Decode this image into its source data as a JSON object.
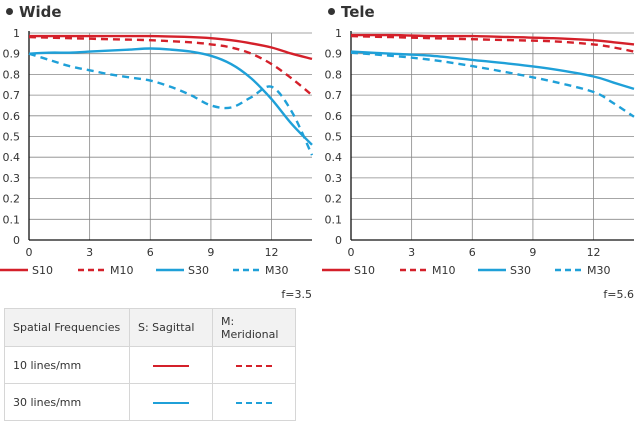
{
  "colors": {
    "red": "#d4202a",
    "blue": "#1fa0d8",
    "grid": "#888888",
    "axis": "#111111"
  },
  "legend_items": [
    {
      "label": "S10",
      "color": "#d4202a",
      "dashed": false
    },
    {
      "label": "M10",
      "color": "#d4202a",
      "dashed": true
    },
    {
      "label": "S30",
      "color": "#1fa0d8",
      "dashed": false
    },
    {
      "label": "M30",
      "color": "#1fa0d8",
      "dashed": true
    }
  ],
  "chart_data": [
    {
      "type": "line",
      "title": "Wide",
      "aperture": "f=3.5",
      "xlim": [
        0,
        14
      ],
      "ylim": [
        0,
        1
      ],
      "x_ticks": [
        "0",
        "3",
        "6",
        "9",
        "12"
      ],
      "y_ticks": [
        "0",
        "0.1",
        "0.2",
        "0.3",
        "0.4",
        "0.5",
        "0.6",
        "0.7",
        "0.8",
        "0.9",
        "1"
      ],
      "grid": true,
      "series": [
        {
          "name": "S10",
          "color": "#d4202a",
          "dashed": false,
          "x": [
            0,
            2,
            4,
            6,
            8,
            9,
            10,
            11,
            12,
            13,
            14
          ],
          "y": [
            0.985,
            0.985,
            0.985,
            0.985,
            0.98,
            0.975,
            0.965,
            0.95,
            0.93,
            0.9,
            0.875
          ]
        },
        {
          "name": "M10",
          "color": "#d4202a",
          "dashed": true,
          "x": [
            0,
            2,
            4,
            6,
            8,
            9,
            10,
            11,
            12,
            13,
            14
          ],
          "y": [
            0.98,
            0.975,
            0.97,
            0.965,
            0.955,
            0.945,
            0.93,
            0.9,
            0.85,
            0.78,
            0.7
          ]
        },
        {
          "name": "S30",
          "color": "#1fa0d8",
          "dashed": false,
          "x": [
            0,
            1,
            2,
            3,
            4,
            5,
            6,
            7,
            8,
            9,
            10,
            11,
            12,
            13,
            14
          ],
          "y": [
            0.9,
            0.905,
            0.905,
            0.91,
            0.915,
            0.92,
            0.925,
            0.92,
            0.91,
            0.89,
            0.85,
            0.78,
            0.68,
            0.56,
            0.46
          ]
        },
        {
          "name": "M30",
          "color": "#1fa0d8",
          "dashed": true,
          "x": [
            0,
            1,
            2,
            3,
            4,
            5,
            6,
            7,
            8,
            9,
            10,
            11,
            12,
            13,
            14
          ],
          "y": [
            0.9,
            0.87,
            0.84,
            0.82,
            0.8,
            0.785,
            0.77,
            0.74,
            0.7,
            0.65,
            0.64,
            0.69,
            0.74,
            0.62,
            0.41
          ]
        }
      ]
    },
    {
      "type": "line",
      "title": "Tele",
      "aperture": "f=5.6",
      "xlim": [
        0,
        14
      ],
      "ylim": [
        0,
        1
      ],
      "x_ticks": [
        "0",
        "3",
        "6",
        "9",
        "12"
      ],
      "y_ticks": [
        "0",
        "0.1",
        "0.2",
        "0.3",
        "0.4",
        "0.5",
        "0.6",
        "0.7",
        "0.8",
        "0.9",
        "1"
      ],
      "grid": true,
      "series": [
        {
          "name": "S10",
          "color": "#d4202a",
          "dashed": false,
          "x": [
            0,
            2,
            4,
            6,
            8,
            10,
            12,
            13,
            14
          ],
          "y": [
            0.99,
            0.99,
            0.985,
            0.985,
            0.98,
            0.975,
            0.965,
            0.955,
            0.945
          ]
        },
        {
          "name": "M10",
          "color": "#d4202a",
          "dashed": true,
          "x": [
            0,
            2,
            4,
            6,
            8,
            10,
            12,
            13,
            14
          ],
          "y": [
            0.985,
            0.98,
            0.975,
            0.97,
            0.965,
            0.96,
            0.945,
            0.93,
            0.91
          ]
        },
        {
          "name": "S30",
          "color": "#1fa0d8",
          "dashed": false,
          "x": [
            0,
            2,
            4,
            6,
            8,
            10,
            12,
            13,
            14
          ],
          "y": [
            0.91,
            0.9,
            0.89,
            0.87,
            0.85,
            0.825,
            0.79,
            0.76,
            0.73
          ]
        },
        {
          "name": "M30",
          "color": "#1fa0d8",
          "dashed": true,
          "x": [
            0,
            2,
            4,
            6,
            8,
            10,
            12,
            13,
            14
          ],
          "y": [
            0.905,
            0.89,
            0.87,
            0.84,
            0.805,
            0.765,
            0.715,
            0.66,
            0.595
          ]
        }
      ]
    }
  ],
  "table": {
    "headers": [
      "Spatial Frequencies",
      "S: Sagittal",
      "M: Meridional"
    ],
    "rows": [
      {
        "label": "10 lines/mm",
        "color": "#d4202a"
      },
      {
        "label": "30 lines/mm",
        "color": "#1fa0d8"
      }
    ]
  }
}
